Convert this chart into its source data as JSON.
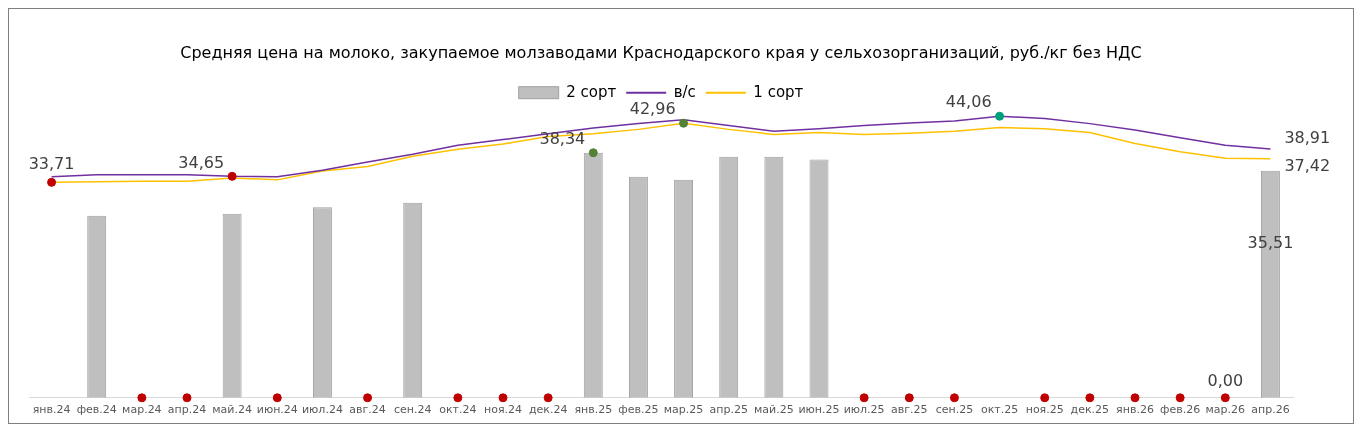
{
  "chart_data": {
    "type": "bar",
    "title": "Средняя цена на молоко, закупаемое молзаводами Краснодарского края у сельхозорганизаций, руб./кг без НДС",
    "categories": [
      "янв.24",
      "фев.24",
      "мар.24",
      "апр.24",
      "май.24",
      "июн.24",
      "июл.24",
      "авг.24",
      "сен.24",
      "окт.24",
      "ноя.24",
      "дек.24",
      "янв.25",
      "фев.25",
      "мар.25",
      "апр.25",
      "май.25",
      "июн.25",
      "июл.25",
      "авг.25",
      "сен.25",
      "окт.25",
      "ноя.25",
      "дек.25",
      "янв.26",
      "фев.26",
      "мар.26",
      "апр.26"
    ],
    "series": [
      {
        "name": "2 сорт",
        "color": "#bfbfbf",
        "values": [
          0,
          28.5,
          0,
          0,
          28.8,
          0,
          29.8,
          0,
          30.5,
          0,
          0,
          0,
          38.34,
          34.6,
          34.1,
          37.7,
          37.7,
          37.3,
          0,
          0,
          0,
          0,
          0,
          0,
          0,
          0,
          0,
          35.51
        ],
        "value_labels": [
          null,
          null,
          null,
          null,
          null,
          null,
          null,
          null,
          null,
          null,
          null,
          null,
          null,
          null,
          null,
          null,
          null,
          null,
          null,
          null,
          null,
          null,
          null,
          null,
          null,
          null,
          null,
          "35,51"
        ]
      },
      {
        "name": "в/с",
        "type": "line",
        "color": "#7030a0",
        "marker": "none",
        "values": [
          34.6,
          34.9,
          34.9,
          34.9,
          34.65,
          34.6,
          35.6,
          36.9,
          38.1,
          39.5,
          40.4,
          41.3,
          42.2,
          42.9,
          43.5,
          42.6,
          41.7,
          42.1,
          42.6,
          43.0,
          43.3,
          44.06,
          43.7,
          42.9,
          41.9,
          40.7,
          39.5,
          38.91
        ],
        "value_labels": [
          null,
          null,
          null,
          null,
          null,
          null,
          null,
          null,
          null,
          null,
          null,
          null,
          null,
          null,
          null,
          null,
          null,
          null,
          null,
          null,
          null,
          null,
          null,
          null,
          null,
          null,
          null,
          "38,91"
        ]
      },
      {
        "name": "1 сорт",
        "type": "line",
        "color": "#ffc000",
        "marker": "none",
        "values": [
          33.71,
          33.8,
          33.9,
          33.9,
          34.4,
          34.1,
          35.5,
          36.2,
          37.8,
          38.9,
          39.7,
          40.9,
          41.3,
          42.0,
          42.96,
          42.0,
          41.2,
          41.5,
          41.2,
          41.4,
          41.7,
          42.3,
          42.1,
          41.5,
          39.8,
          38.5,
          37.5,
          37.42
        ],
        "value_labels": [
          null,
          null,
          null,
          null,
          null,
          null,
          null,
          null,
          null,
          null,
          null,
          null,
          null,
          null,
          null,
          null,
          null,
          null,
          null,
          null,
          null,
          null,
          null,
          null,
          null,
          null,
          null,
          "37,42"
        ]
      },
      {
        "type": "scatter",
        "color": "#c00000",
        "marker": "circle",
        "colors": [
          "#c00000",
          null,
          "#c00000",
          "#c00000",
          "#c00000",
          "#c00000",
          null,
          "#c00000",
          null,
          "#c00000",
          "#c00000",
          "#c00000",
          "#548235",
          null,
          "#548235",
          null,
          null,
          null,
          "#c00000",
          "#c00000",
          "#c00000",
          "#00a07a",
          "#c00000",
          "#c00000",
          "#c00000",
          "#c00000",
          "#c00000",
          null
        ],
        "values": [
          33.71,
          null,
          0,
          0,
          34.65,
          0,
          null,
          0,
          null,
          0,
          0,
          0,
          38.34,
          null,
          42.96,
          null,
          null,
          null,
          0,
          0,
          0,
          44.06,
          0,
          0,
          0,
          0,
          0,
          null
        ],
        "value_labels": [
          "33,71",
          null,
          null,
          null,
          "34,65",
          null,
          null,
          null,
          null,
          null,
          null,
          null,
          "38,34",
          null,
          "42,96",
          null,
          null,
          null,
          null,
          null,
          null,
          "44,06",
          null,
          null,
          null,
          null,
          "0,00",
          null
        ]
      }
    ],
    "grid": false,
    "legend": "top"
  }
}
